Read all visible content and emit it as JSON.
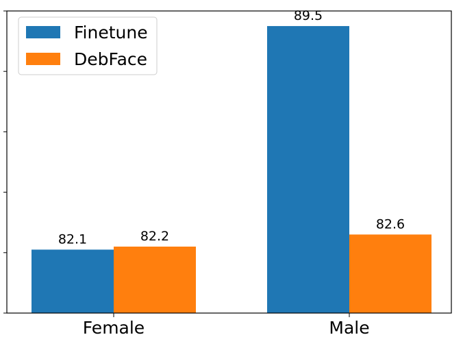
{
  "chart_data": {
    "type": "bar",
    "categories": [
      "Female",
      "Male"
    ],
    "series": [
      {
        "name": "Finetune",
        "values": [
          82.1,
          89.5
        ],
        "color": "#1f77b4"
      },
      {
        "name": "DebFace",
        "values": [
          82.2,
          82.6
        ],
        "color": "#ff7f0e"
      }
    ],
    "value_labels": [
      [
        "82.1",
        "89.5"
      ],
      [
        "82.2",
        "82.6"
      ]
    ],
    "ylim": [
      80.0,
      90.0
    ],
    "y_tick_values": [
      80.0,
      82.0,
      84.0,
      86.0,
      88.0,
      90.0
    ],
    "y_tick_labels_visible": false,
    "grid": false,
    "legend_position": "top-left"
  }
}
